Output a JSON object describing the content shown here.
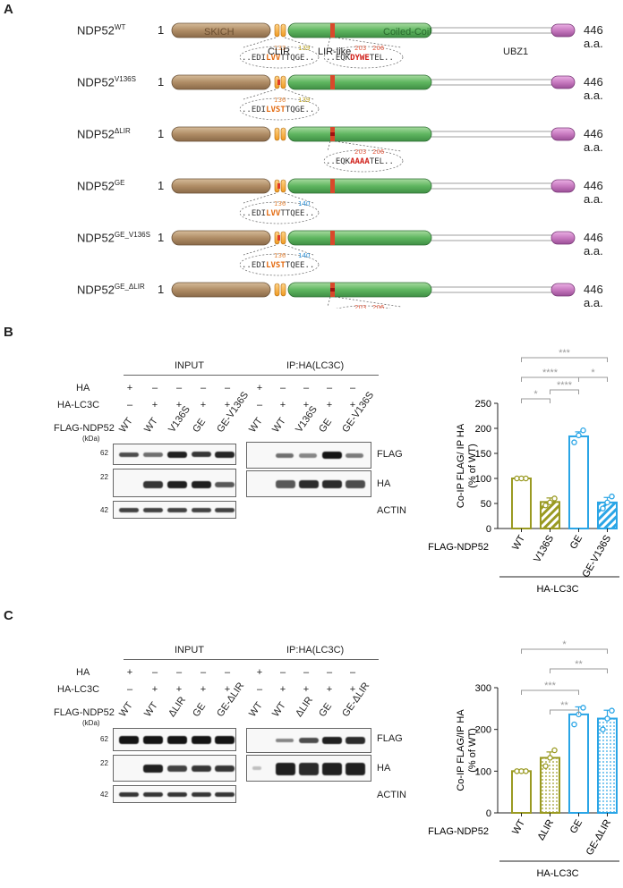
{
  "panels": {
    "a": "A",
    "b": "B",
    "c": "C"
  },
  "panelA": {
    "constructs": [
      {
        "name": "NDP52",
        "sup": "WT",
        "start": "1",
        "end": "446 a.a.",
        "seq_left": "..EDI",
        "seq_left_hl": "LVV",
        "seq_left_rest": "TTQGE..",
        "pos_left": "133 139",
        "seq_right": "..EQK",
        "seq_right_hl": "DYWE",
        "seq_right_rest": "TEL..",
        "pos_right": "203 206"
      },
      {
        "name": "NDP52",
        "sup": "V136S",
        "start": "1",
        "end": "446 a.a.",
        "seq_left": "..EDI",
        "seq_left_hl": "LVST",
        "seq_left_rest": "TQGE..",
        "pos_left": "136 139"
      },
      {
        "name": "NDP52",
        "sup": "ΔLIR",
        "start": "1",
        "end": "446 a.a.",
        "seq_right": "..EQK",
        "seq_right_hl": "AAAA",
        "seq_right_rest": "TEL..",
        "pos_right": "203 206"
      },
      {
        "name": "NDP52",
        "sup": "GE",
        "start": "1",
        "end": "446 a.a.",
        "seq_left": "..EDI",
        "seq_left_hl": "LVV",
        "seq_left_rest": "TTQEE..",
        "pos_left": "136 140"
      },
      {
        "name": "NDP52",
        "sup": "GE_V136S",
        "start": "1",
        "end": "446 a.a.",
        "seq_left": "..EDI",
        "seq_left_hl": "LVST",
        "seq_left_rest": "TQEE..",
        "pos_left": "136 140"
      },
      {
        "name": "NDP52",
        "sup": "GE_ΔLIR",
        "start": "1",
        "end": "446 a.a.",
        "seq_right": "..EQK",
        "seq_right_hl": "AAAA",
        "seq_right_rest": "TEL..",
        "pos_right": "203 206"
      }
    ],
    "domain_labels": {
      "skich": "SKICH",
      "coiled": "Coiled-Coil",
      "clir": "CLIR",
      "lir_like": "LIR-like",
      "ubz": "UBZ1"
    }
  },
  "panelB": {
    "input_label": "INPUT",
    "ip_label": "IP:HA(LC3C)",
    "row_ha": "HA",
    "row_halc3c": "HA-LC3C",
    "row_flag": "FLAG-NDP52",
    "kda": "(kDa)",
    "ha_signs": [
      "+",
      "–",
      "–",
      "–",
      "–"
    ],
    "halc3c_signs": [
      "–",
      "+",
      "+",
      "+",
      "+"
    ],
    "lanes": [
      "WT",
      "WT",
      "V136S",
      "GE",
      "GE-V136S"
    ],
    "markers": [
      "62",
      "22",
      "42"
    ],
    "blot_labels": [
      "FLAG",
      "HA",
      "ACTIN"
    ]
  },
  "panelC": {
    "input_label": "INPUT",
    "ip_label": "IP:HA(LC3C)",
    "row_ha": "HA",
    "row_halc3c": "HA-LC3C",
    "row_flag": "FLAG-NDP52",
    "kda": "(kDa)",
    "ha_signs": [
      "+",
      "–",
      "–",
      "–",
      "–"
    ],
    "halc3c_signs": [
      "–",
      "+",
      "+",
      "+",
      "+"
    ],
    "lanes": [
      "WT",
      "WT",
      "ΔLIR",
      "GE",
      "GE-ΔLIR"
    ],
    "markers": [
      "62",
      "22",
      "42"
    ],
    "blot_labels": [
      "FLAG",
      "HA",
      "ACTIN"
    ]
  },
  "chart_data": [
    {
      "type": "bar",
      "ylabel": "Co-IP FLAG/ IP HA (% of WT)",
      "ylim": [
        0,
        250
      ],
      "yticks": [
        "0",
        "50",
        "100",
        "150",
        "200",
        "250"
      ],
      "categories": [
        "WT",
        "V136S",
        "GE",
        "GE-V136S"
      ],
      "values": [
        100,
        53,
        184,
        52
      ],
      "errors": [
        0,
        8,
        9,
        10
      ],
      "points": [
        [
          100,
          100,
          100
        ],
        [
          46,
          52,
          60
        ],
        [
          172,
          186,
          196
        ],
        [
          40,
          52,
          64
        ]
      ],
      "colors": [
        "#9a9a22",
        "#9a9a22",
        "#2aa5e6",
        "#2aa5e6"
      ],
      "patterns": [
        "none",
        "hatch",
        "none",
        "hatch"
      ],
      "xrow_label": "FLAG-NDP52",
      "group_label": "HA-LC3C",
      "significance": [
        "*",
        "***",
        "****",
        "****",
        "*"
      ]
    },
    {
      "type": "bar",
      "ylabel": "Co-IP FLAG/IP HA (% of WT)",
      "ylim": [
        0,
        300
      ],
      "yticks": [
        "0",
        "100",
        "200",
        "300"
      ],
      "categories": [
        "WT",
        "ΔLIR",
        "GE",
        "GE-ΔLIR"
      ],
      "values": [
        100,
        132,
        236,
        226
      ],
      "errors": [
        0,
        14,
        18,
        20
      ],
      "points": [
        [
          100,
          100,
          100
        ],
        [
          112,
          132,
          150
        ],
        [
          212,
          236,
          252
        ],
        [
          200,
          226,
          245
        ]
      ],
      "colors": [
        "#9a9a22",
        "#9a9a22",
        "#2aa5e6",
        "#2aa5e6"
      ],
      "patterns": [
        "none",
        "dots",
        "none",
        "dots"
      ],
      "xrow_label": "FLAG-NDP52",
      "group_label": "HA-LC3C",
      "significance": [
        "*",
        "**",
        "***",
        "**"
      ]
    }
  ]
}
